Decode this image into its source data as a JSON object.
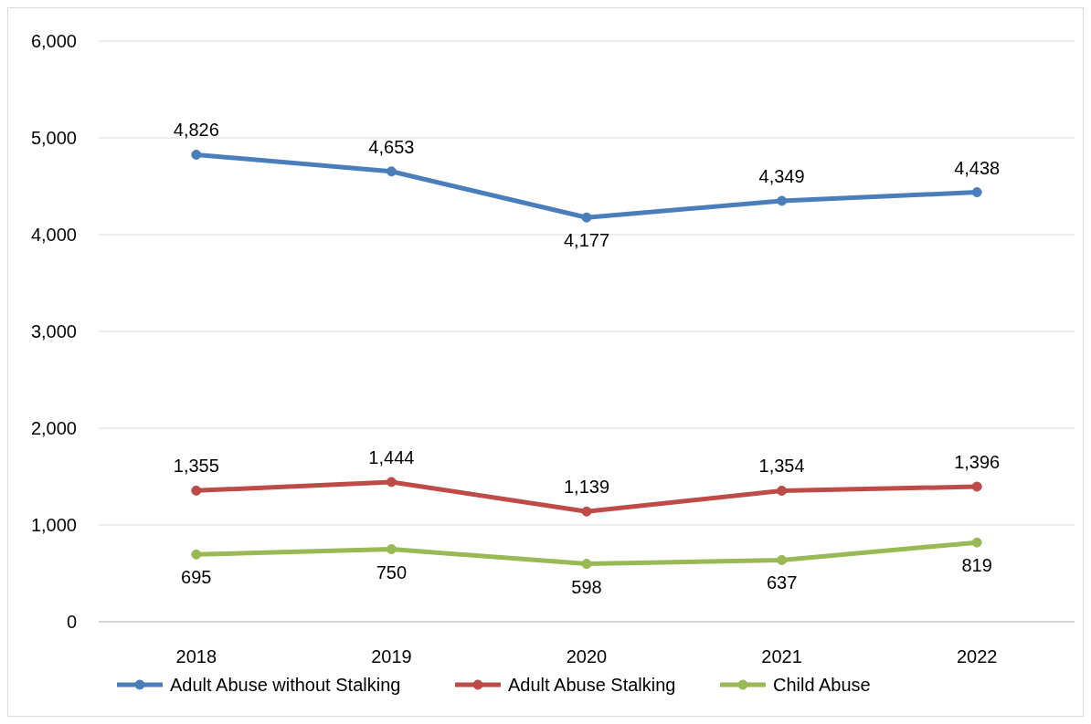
{
  "chart_data": {
    "type": "line",
    "categories": [
      "2018",
      "2019",
      "2020",
      "2021",
      "2022"
    ],
    "series": [
      {
        "name": "Adult Abuse without Stalking",
        "color": "#4a7ebb",
        "values": [
          4826,
          4653,
          4177,
          4349,
          4438
        ],
        "value_labels": [
          "4,826",
          "4,653",
          "4,177",
          "4,349",
          "4,438"
        ]
      },
      {
        "name": "Adult Abuse Stalking",
        "color": "#be4b48",
        "values": [
          1355,
          1444,
          1139,
          1354,
          1396
        ],
        "value_labels": [
          "1,355",
          "1,444",
          "1,139",
          "1,354",
          "1,396"
        ]
      },
      {
        "name": "Child Abuse",
        "color": "#98b954",
        "values": [
          695,
          750,
          598,
          637,
          819
        ],
        "value_labels": [
          "695",
          "750",
          "598",
          "637",
          "819"
        ]
      }
    ],
    "ylim": [
      0,
      6000
    ],
    "yticks": [
      {
        "value": 0,
        "label": "0"
      },
      {
        "value": 1000,
        "label": "1,000"
      },
      {
        "value": 2000,
        "label": "2,000"
      },
      {
        "value": 3000,
        "label": "3,000"
      },
      {
        "value": 4000,
        "label": "4,000"
      },
      {
        "value": 5000,
        "label": "5,000"
      },
      {
        "value": 6000,
        "label": "6,000"
      }
    ],
    "grid": "y",
    "legend": "bottom",
    "marker": "circle",
    "line_style": "solid"
  }
}
